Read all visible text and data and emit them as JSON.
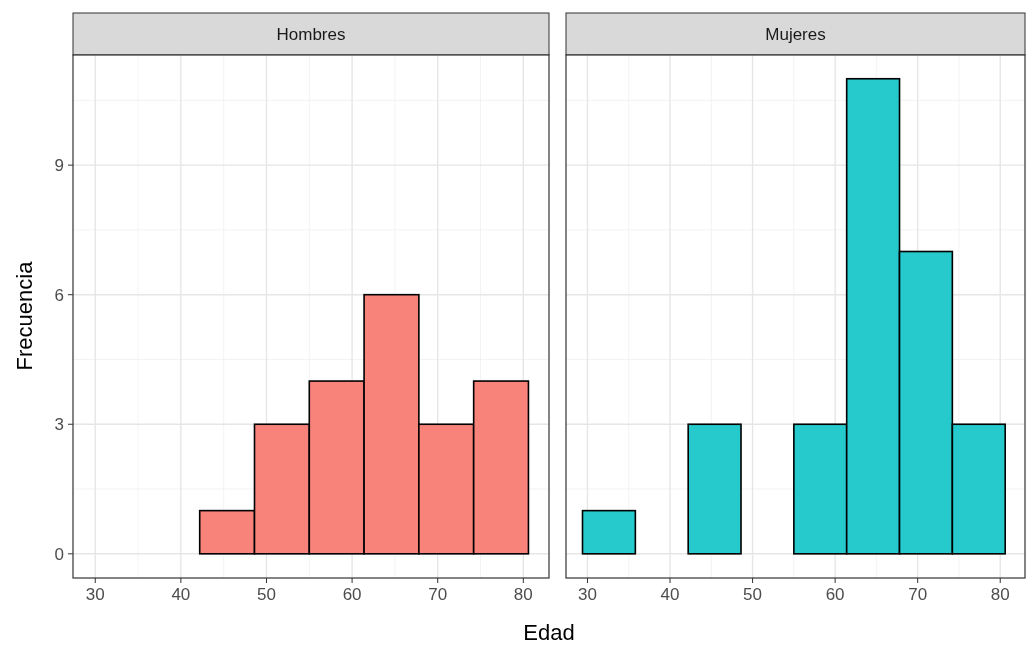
{
  "chart_data": [
    {
      "type": "histogram",
      "title": "Hombres",
      "ylabel": "Frecuencia",
      "xlabel": "Edad",
      "bins": [
        29.4,
        35.8,
        42.2,
        48.6,
        55.0,
        61.4,
        67.8,
        74.2,
        80.6
      ],
      "values": [
        0,
        0,
        1,
        3,
        4,
        6,
        3,
        4
      ],
      "color": "#f8837a",
      "xlim": [
        27.4,
        83.0
      ],
      "xticks": [
        30,
        40,
        50,
        60,
        70,
        80
      ],
      "ylim": [
        -0.56,
        11.55
      ],
      "yticks": [
        0,
        3,
        6,
        9
      ],
      "grid": true
    },
    {
      "type": "histogram",
      "title": "Mujeres",
      "bins": [
        29.4,
        35.8,
        42.2,
        48.6,
        55.0,
        61.4,
        67.8,
        74.2,
        80.6
      ],
      "values": [
        1,
        0,
        3,
        0,
        3,
        11,
        7,
        3
      ],
      "color": "#26c9cc",
      "xlim": [
        27.4,
        83.0
      ],
      "xticks": [
        30,
        40,
        50,
        60,
        70,
        80
      ],
      "ylim": [
        -0.56,
        11.55
      ],
      "yticks": [
        0,
        3,
        6,
        9
      ],
      "grid": true,
      "tick_labels": "x"
    }
  ]
}
